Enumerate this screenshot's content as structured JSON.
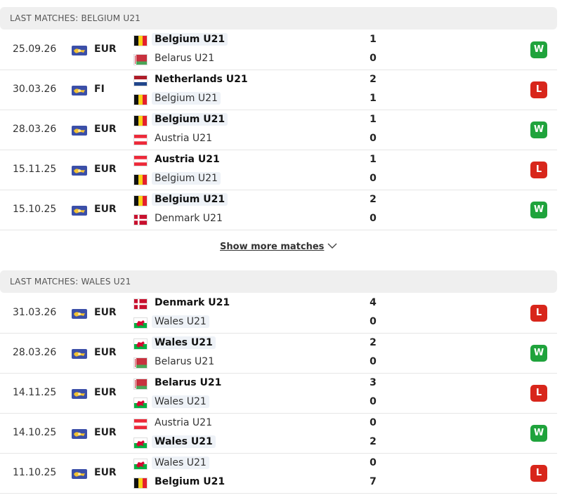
{
  "sections": [
    {
      "title": "LAST MATCHES: BELGIUM U21",
      "show_more": "Show more matches",
      "matches": [
        {
          "date": "25.09.26",
          "competition": "EUR",
          "home": {
            "team": "Belgium U21",
            "score": 1,
            "highlight": true
          },
          "away": {
            "team": "Belarus U21",
            "score": 0,
            "highlight": false
          },
          "result": "W"
        },
        {
          "date": "30.03.26",
          "competition": "FI",
          "home": {
            "team": "Netherlands U21",
            "score": 2,
            "highlight": false
          },
          "away": {
            "team": "Belgium U21",
            "score": 1,
            "highlight": true
          },
          "result": "L"
        },
        {
          "date": "28.03.26",
          "competition": "EUR",
          "home": {
            "team": "Belgium U21",
            "score": 1,
            "highlight": true
          },
          "away": {
            "team": "Austria U21",
            "score": 0,
            "highlight": false
          },
          "result": "W"
        },
        {
          "date": "15.11.25",
          "competition": "EUR",
          "home": {
            "team": "Austria U21",
            "score": 1,
            "highlight": false
          },
          "away": {
            "team": "Belgium U21",
            "score": 0,
            "highlight": true
          },
          "result": "L"
        },
        {
          "date": "15.10.25",
          "competition": "EUR",
          "home": {
            "team": "Belgium U21",
            "score": 2,
            "highlight": true
          },
          "away": {
            "team": "Denmark U21",
            "score": 0,
            "highlight": false
          },
          "result": "W"
        }
      ]
    },
    {
      "title": "LAST MATCHES: WALES U21",
      "matches": [
        {
          "date": "31.03.26",
          "competition": "EUR",
          "home": {
            "team": "Denmark U21",
            "score": 4,
            "highlight": false
          },
          "away": {
            "team": "Wales U21",
            "score": 0,
            "highlight": true
          },
          "result": "L"
        },
        {
          "date": "28.03.26",
          "competition": "EUR",
          "home": {
            "team": "Wales U21",
            "score": 2,
            "highlight": true
          },
          "away": {
            "team": "Belarus U21",
            "score": 0,
            "highlight": false
          },
          "result": "W"
        },
        {
          "date": "14.11.25",
          "competition": "EUR",
          "home": {
            "team": "Belarus U21",
            "score": 3,
            "highlight": false
          },
          "away": {
            "team": "Wales U21",
            "score": 0,
            "highlight": true
          },
          "result": "L"
        },
        {
          "date": "14.10.25",
          "competition": "EUR",
          "home": {
            "team": "Austria U21",
            "score": 0,
            "highlight": false
          },
          "away": {
            "team": "Wales U21",
            "score": 2,
            "highlight": true
          },
          "result": "W"
        },
        {
          "date": "11.10.25",
          "competition": "EUR",
          "home": {
            "team": "Wales U21",
            "score": 0,
            "highlight": true
          },
          "away": {
            "team": "Belgium U21",
            "score": 7,
            "highlight": false
          },
          "result": "L"
        }
      ]
    }
  ]
}
